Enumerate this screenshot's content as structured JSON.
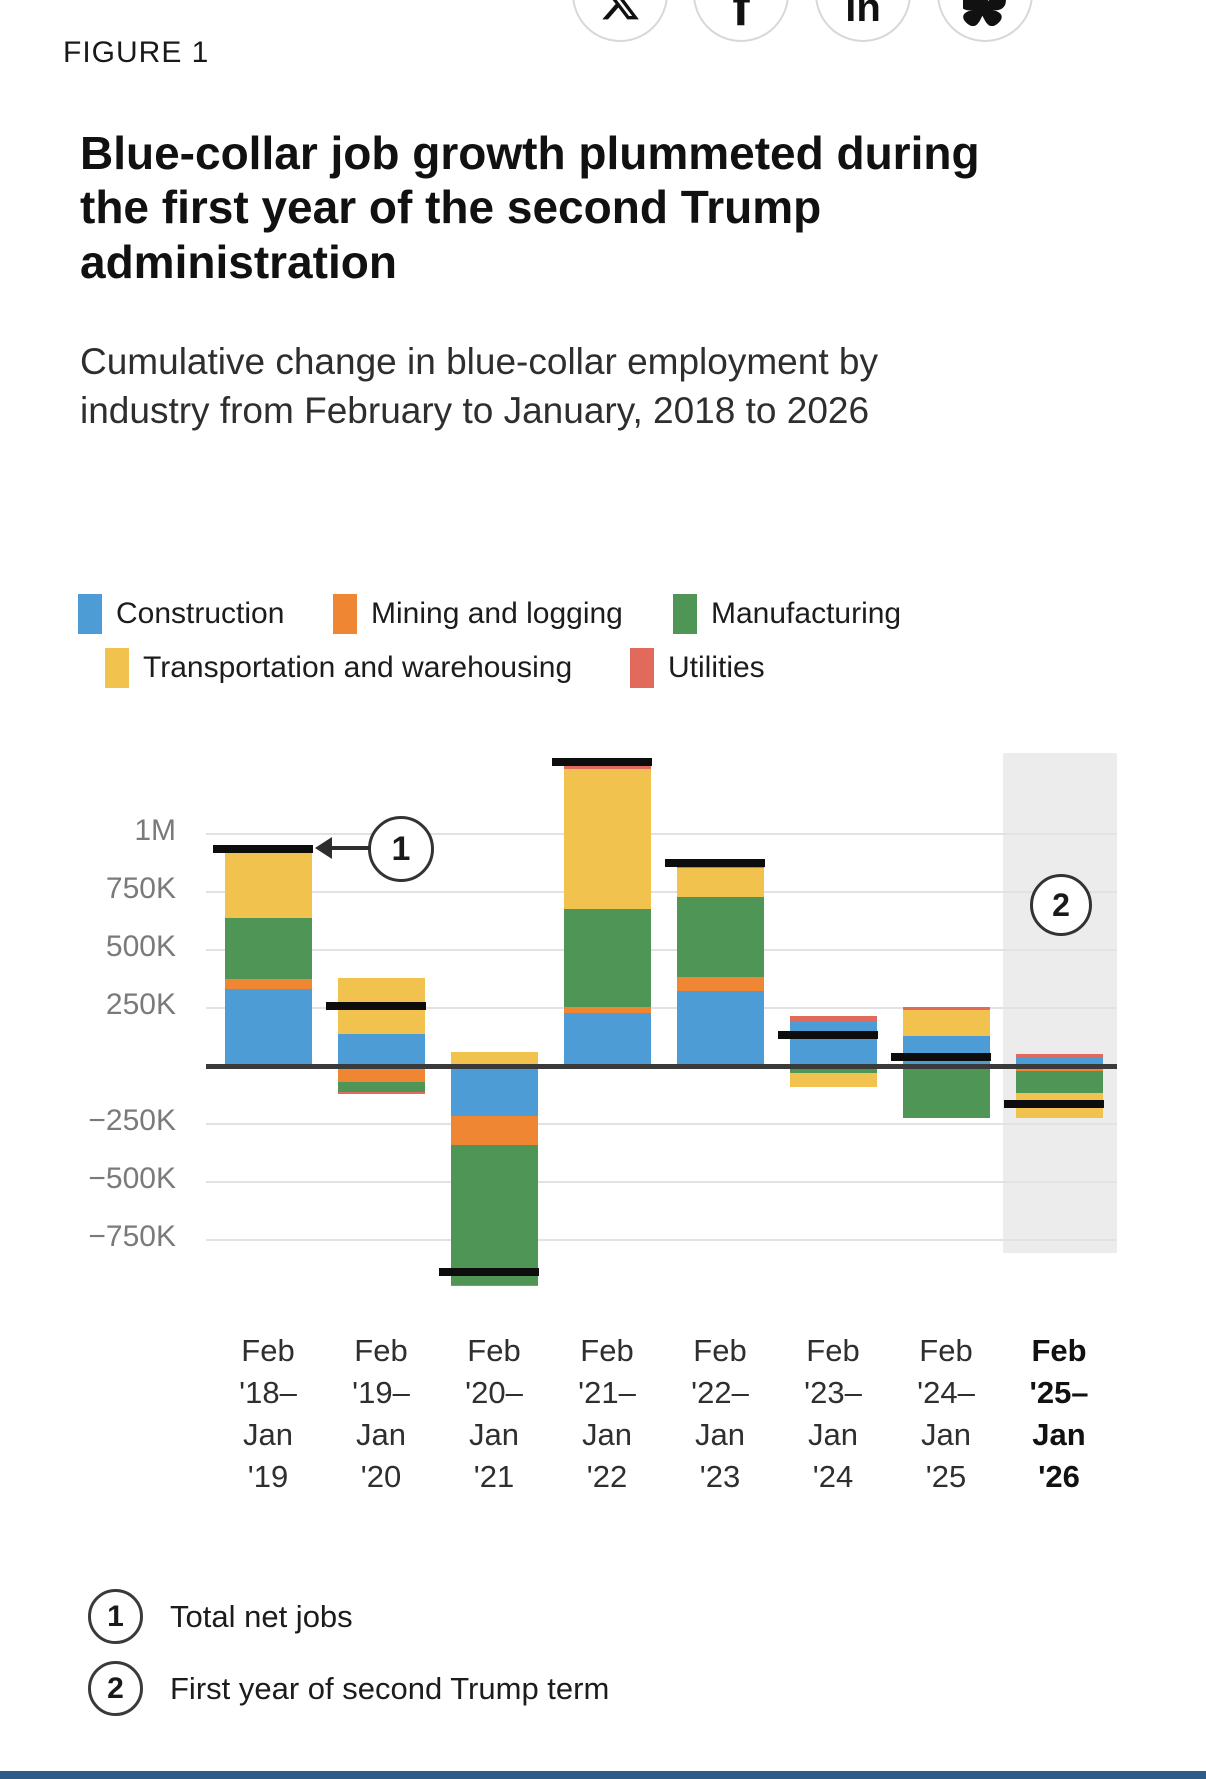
{
  "figure_label": "FIGURE 1",
  "share": {
    "buttons": [
      {
        "icon": "x-icon",
        "label": "Share on X"
      },
      {
        "icon": "facebook-icon",
        "label": "Share on Facebook"
      },
      {
        "icon": "linkedin-icon",
        "label": "Share on LinkedIn"
      },
      {
        "icon": "bluesky-icon",
        "label": "Share on Bluesky"
      }
    ]
  },
  "title": "Blue-collar job growth plummeted during the first year of the second Trump administration",
  "subtitle": "Cumulative change in blue-collar employment by industry from February to January, 2018 to 2026",
  "chart_data": {
    "type": "bar",
    "stacked": true,
    "grid": true,
    "legend_position": "top",
    "value_unit": "jobs, thousands",
    "ylim": [
      -1000,
      1350
    ],
    "y_ticks": [
      {
        "label": "1M",
        "value": 1000
      },
      {
        "label": "750K",
        "value": 750
      },
      {
        "label": "500K",
        "value": 500
      },
      {
        "label": "250K",
        "value": 250
      },
      {
        "label": "−250K",
        "value": -250
      },
      {
        "label": "−500K",
        "value": -500
      },
      {
        "label": "−750K",
        "value": -750
      }
    ],
    "categories": [
      {
        "label": "Feb '18–Jan '19",
        "lines": [
          "Feb",
          "'18–",
          "Jan",
          "'19"
        ],
        "bold": false
      },
      {
        "label": "Feb '19–Jan '20",
        "lines": [
          "Feb",
          "'19–",
          "Jan",
          "'20"
        ],
        "bold": false
      },
      {
        "label": "Feb '20–Jan '21",
        "lines": [
          "Feb",
          "'20–",
          "Jan",
          "'21"
        ],
        "bold": false
      },
      {
        "label": "Feb '21–Jan '22",
        "lines": [
          "Feb",
          "'21–",
          "Jan",
          "'22"
        ],
        "bold": false
      },
      {
        "label": "Feb '22–Jan '23",
        "lines": [
          "Feb",
          "'22–",
          "Jan",
          "'23"
        ],
        "bold": false
      },
      {
        "label": "Feb '23–Jan '24",
        "lines": [
          "Feb",
          "'23–",
          "Jan",
          "'24"
        ],
        "bold": false
      },
      {
        "label": "Feb '24–Jan '25",
        "lines": [
          "Feb",
          "'24–",
          "Jan",
          "'25"
        ],
        "bold": false
      },
      {
        "label": "Feb '25–Jan '26",
        "lines": [
          "Feb",
          "'25–",
          "Jan",
          "'26"
        ],
        "bold": true
      }
    ],
    "series": [
      {
        "name": "Construction",
        "color": "#4D9CD5",
        "values": [
          330,
          140,
          -215,
          230,
          325,
          190,
          130,
          35
        ]
      },
      {
        "name": "Mining and logging",
        "color": "#EE8633",
        "values": [
          45,
          -70,
          -125,
          25,
          60,
          0,
          -10,
          -20
        ]
      },
      {
        "name": "Manufacturing",
        "color": "#4F9656",
        "values": [
          265,
          -40,
          -605,
          420,
          345,
          -30,
          -215,
          -95
        ]
      },
      {
        "name": "Transportation and warehousing",
        "color": "#F2C24E",
        "values": [
          295,
          240,
          60,
          605,
          125,
          -60,
          110,
          -110
        ]
      },
      {
        "name": "Utilities",
        "color": "#E16A5C",
        "values": [
          0,
          -10,
          -5,
          20,
          20,
          25,
          15,
          15
        ]
      }
    ],
    "totals": {
      "name": "Total net jobs",
      "color": "#0d0d0d",
      "values": [
        935,
        260,
        -890,
        1310,
        875,
        135,
        40,
        -165
      ]
    },
    "highlight_column": {
      "category_index": 7,
      "color": "#ececec"
    },
    "annotations": [
      {
        "id": "1",
        "text": "Total net jobs",
        "points_to": "total marker of Feb '18–Jan '19 bar"
      },
      {
        "id": "2",
        "text": "First year of second Trump term",
        "points_to": "highlighted Feb '25–Jan '26 column"
      }
    ]
  },
  "footnotes": [
    {
      "marker": "1",
      "text": "Total net jobs"
    },
    {
      "marker": "2",
      "text": "First year of second Trump term"
    }
  ]
}
